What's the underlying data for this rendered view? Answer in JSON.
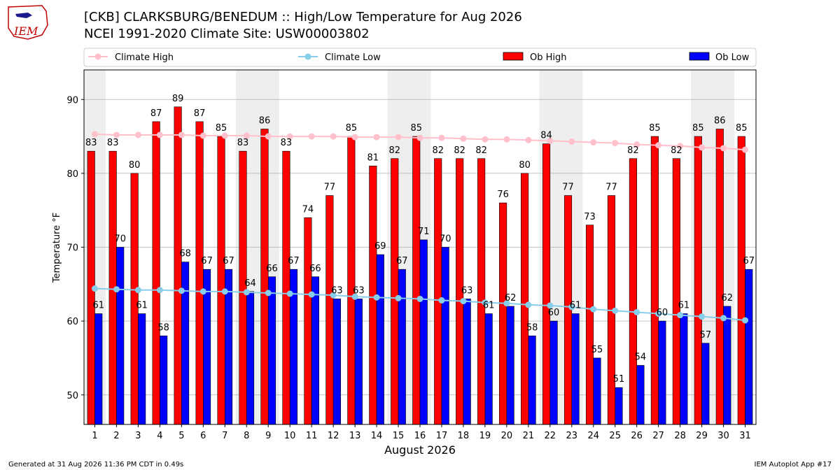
{
  "title_line1": "[CKB] CLARKSBURG/BENEDUM :: High/Low Temperature for Aug 2026",
  "title_line2": "NCEI 1991-2020 Climate Site: USW00003802",
  "logo_text": "IEM",
  "footer_left": "Generated at 31 Aug 2026 11:36 PM CDT in 0.49s",
  "footer_right": "IEM Autoplot App #17",
  "colors": {
    "ob_high": "#ff0000",
    "ob_low": "#0000ff",
    "climate_high": "#ffc0cb",
    "climate_low": "#87ceeb",
    "weekend_shade": "#eeeeee",
    "grid": "#b0b0b0"
  },
  "chart_data": {
    "type": "bar",
    "xlabel": "August 2026",
    "ylabel": "Temperature °F",
    "ylim": [
      46,
      94
    ],
    "yticks": [
      50,
      60,
      70,
      80,
      90
    ],
    "grid": "horizontal",
    "legend_position": "top",
    "categories": [
      "1",
      "2",
      "3",
      "4",
      "5",
      "6",
      "7",
      "8",
      "9",
      "10",
      "11",
      "12",
      "13",
      "14",
      "15",
      "16",
      "17",
      "18",
      "19",
      "20",
      "21",
      "22",
      "23",
      "24",
      "25",
      "26",
      "27",
      "28",
      "29",
      "30",
      "31"
    ],
    "shaded_days": [
      1,
      8,
      9,
      15,
      16,
      22,
      23,
      29,
      30
    ],
    "series": [
      {
        "name": "Climate High",
        "kind": "line",
        "values": [
          85.3,
          85.2,
          85.2,
          85.2,
          85.2,
          85.1,
          85.1,
          85.1,
          85.0,
          85.0,
          85.0,
          85.0,
          84.9,
          84.9,
          84.9,
          84.8,
          84.8,
          84.7,
          84.6,
          84.6,
          84.5,
          84.4,
          84.3,
          84.2,
          84.1,
          83.9,
          83.8,
          83.7,
          83.5,
          83.4,
          83.2
        ]
      },
      {
        "name": "Climate Low",
        "kind": "line",
        "values": [
          64.4,
          64.3,
          64.2,
          64.2,
          64.1,
          64.0,
          64.0,
          63.9,
          63.8,
          63.7,
          63.6,
          63.5,
          63.3,
          63.2,
          63.1,
          63.0,
          62.8,
          62.7,
          62.5,
          62.4,
          62.2,
          62.1,
          61.9,
          61.6,
          61.4,
          61.2,
          61.0,
          60.8,
          60.6,
          60.4,
          60.1
        ]
      },
      {
        "name": "Ob High",
        "kind": "bar",
        "values": [
          83,
          83,
          80,
          87,
          89,
          87,
          85,
          83,
          86,
          83,
          74,
          77,
          85,
          81,
          82,
          85,
          82,
          82,
          82,
          76,
          80,
          84,
          77,
          73,
          77,
          82,
          85,
          82,
          85,
          86,
          85
        ]
      },
      {
        "name": "Ob Low",
        "kind": "bar",
        "values": [
          61,
          70,
          61,
          58,
          68,
          67,
          67,
          64,
          66,
          67,
          66,
          63,
          63,
          69,
          67,
          71,
          70,
          63,
          61,
          62,
          58,
          60,
          61,
          55,
          51,
          54,
          60,
          61,
          57,
          62,
          67
        ]
      }
    ]
  }
}
